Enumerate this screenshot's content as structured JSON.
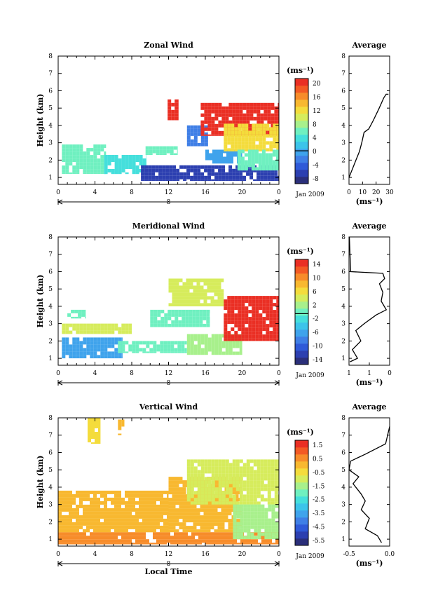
{
  "chart_data": [
    {
      "type": "heatmap",
      "title": "Zonal Wind",
      "ylabel": "Height (km)",
      "x_ticks": [
        "0",
        "4",
        "8",
        "12",
        "16",
        "20",
        "0"
      ],
      "y_ticks": [
        "1",
        "2",
        "3",
        "4",
        "5",
        "6",
        "7",
        "8"
      ],
      "xlim": [
        0,
        24
      ],
      "ylim": [
        0.6,
        8
      ],
      "date_marker": "8",
      "date_label": "Jan 2009",
      "colorbar": {
        "unit": "(ms⁻¹)",
        "labels": [
          "20",
          "16",
          "12",
          "8",
          "4",
          "0",
          "-4",
          "-8"
        ],
        "range": [
          -10,
          22
        ],
        "colors": [
          "#2b2f7a",
          "#2c3fb0",
          "#2f5ad8",
          "#3f7fe6",
          "#3fa3ec",
          "#3cc4ea",
          "#45dfdc",
          "#6ff0c0",
          "#a8f08c",
          "#d6ec5c",
          "#f4dc3c",
          "#f8b830",
          "#f78c2a",
          "#f35a24",
          "#ea2f24"
        ],
        "zero_line": 0
      },
      "profile": {
        "title": "Average",
        "x_ticks": [
          "0",
          "10",
          "20",
          "30"
        ],
        "xlim": [
          0,
          35
        ],
        "xlabel": "(ms⁻¹)",
        "points": [
          [
            0,
            1.0
          ],
          [
            3,
            1.5
          ],
          [
            6,
            2.0
          ],
          [
            9,
            2.5
          ],
          [
            11,
            3.0
          ],
          [
            13,
            3.6
          ],
          [
            17,
            3.8
          ],
          [
            21,
            4.3
          ],
          [
            26,
            5.0
          ],
          [
            30,
            5.6
          ],
          [
            32,
            5.8
          ],
          [
            34,
            5.8
          ]
        ]
      },
      "patches": [
        {
          "x": [
            0.4,
            5.2
          ],
          "y": [
            1.2,
            2.9
          ],
          "v": 5
        },
        {
          "x": [
            5.0,
            9.6
          ],
          "y": [
            1.2,
            2.3
          ],
          "v": 4
        },
        {
          "x": [
            9.0,
            24.0
          ],
          "y": [
            0.8,
            1.7
          ],
          "v": -6
        },
        {
          "x": [
            9.5,
            13.0
          ],
          "y": [
            2.3,
            2.8
          ],
          "v": 6
        },
        {
          "x": [
            11.9,
            13.1
          ],
          "y": [
            4.3,
            5.5
          ],
          "v": 20
        },
        {
          "x": [
            14.0,
            16.3
          ],
          "y": [
            2.8,
            4.0
          ],
          "v": -3
        },
        {
          "x": [
            16.0,
            20.0
          ],
          "y": [
            1.8,
            2.6
          ],
          "v": 0
        },
        {
          "x": [
            15.5,
            24.0
          ],
          "y": [
            3.4,
            5.3
          ],
          "v": 20
        },
        {
          "x": [
            18.0,
            24.0
          ],
          "y": [
            2.5,
            4.1
          ],
          "v": 13
        },
        {
          "x": [
            19.5,
            24.0
          ],
          "y": [
            1.4,
            2.6
          ],
          "v": 7
        }
      ]
    },
    {
      "type": "heatmap",
      "title": "Meridional Wind",
      "ylabel": "Height (km)",
      "x_ticks": [
        "0",
        "4",
        "8",
        "12",
        "16",
        "20",
        "0"
      ],
      "y_ticks": [
        "1",
        "2",
        "3",
        "4",
        "5",
        "6",
        "7",
        "8"
      ],
      "xlim": [
        0,
        24
      ],
      "ylim": [
        0.6,
        8
      ],
      "date_marker": "8",
      "date_label": "Jan 2009",
      "colorbar": {
        "unit": "(ms⁻¹)",
        "labels": [
          "14",
          "10",
          "6",
          "2",
          "-2",
          "-6",
          "-10",
          "-14"
        ],
        "range": [
          -15,
          16
        ],
        "colors": [
          "#2b2f7a",
          "#2c3fb0",
          "#2f5ad8",
          "#3f7fe6",
          "#3fa3ec",
          "#3cc4ea",
          "#45dfdc",
          "#6ff0c0",
          "#a8f08c",
          "#d6ec5c",
          "#f4dc3c",
          "#f8b830",
          "#f78c2a",
          "#f35a24",
          "#ea2f24"
        ],
        "zero_line": 0
      },
      "profile": {
        "title": "Average",
        "x_ticks": [
          "1",
          "1",
          "0"
        ],
        "xlim": [
          0,
          12
        ],
        "xlabel": "(ms⁻¹)",
        "points": [
          [
            0.3,
            0.8
          ],
          [
            2.5,
            1.0
          ],
          [
            1.0,
            1.5
          ],
          [
            3.5,
            2.0
          ],
          [
            2.0,
            2.6
          ],
          [
            4.5,
            3.0
          ],
          [
            8.0,
            3.5
          ],
          [
            11.0,
            3.8
          ],
          [
            9.5,
            4.3
          ],
          [
            10.0,
            4.8
          ],
          [
            9.0,
            5.3
          ],
          [
            10.5,
            5.6
          ],
          [
            10.0,
            5.9
          ],
          [
            0.5,
            6.0
          ],
          [
            0.3,
            7.0
          ],
          [
            0.1,
            8.0
          ]
        ]
      },
      "patches": [
        {
          "x": [
            0.4,
            7.0
          ],
          "y": [
            1.0,
            2.2
          ],
          "v": -6
        },
        {
          "x": [
            0.4,
            8.0
          ],
          "y": [
            2.4,
            3.0
          ],
          "v": 4
        },
        {
          "x": [
            1.0,
            3.0
          ],
          "y": [
            3.3,
            3.8
          ],
          "v": 0
        },
        {
          "x": [
            6.5,
            14.0
          ],
          "y": [
            1.3,
            2.0
          ],
          "v": 1
        },
        {
          "x": [
            10.0,
            16.5
          ],
          "y": [
            2.8,
            3.8
          ],
          "v": 1
        },
        {
          "x": [
            12.0,
            18.0
          ],
          "y": [
            4.0,
            5.6
          ],
          "v": 5
        },
        {
          "x": [
            14.0,
            20.0
          ],
          "y": [
            1.2,
            2.4
          ],
          "v": 3
        },
        {
          "x": [
            18.0,
            24.0
          ],
          "y": [
            2.0,
            4.6
          ],
          "v": 14
        }
      ]
    },
    {
      "type": "heatmap",
      "title": "Vertical Wind",
      "xlabel": "Local Time",
      "ylabel": "Height (km)",
      "x_ticks": [
        "0",
        "4",
        "8",
        "12",
        "16",
        "20",
        "0"
      ],
      "y_ticks": [
        "1",
        "2",
        "3",
        "4",
        "5",
        "6",
        "7",
        "8"
      ],
      "xlim": [
        0,
        24
      ],
      "ylim": [
        0.6,
        8
      ],
      "date_marker": "8",
      "date_label": "Jan 2009",
      "colorbar": {
        "unit": "(ms⁻¹)",
        "labels": [
          "1.5",
          "0.5",
          "-0.5",
          "-1.5",
          "-2.5",
          "-3.5",
          "-4.5",
          "-5.5"
        ],
        "range": [
          -6,
          2
        ],
        "colors": [
          "#2b2f7a",
          "#2c3fb0",
          "#2f5ad8",
          "#3f7fe6",
          "#3fa3ec",
          "#3cc4ea",
          "#45dfdc",
          "#6ff0c0",
          "#a8f08c",
          "#d6ec5c",
          "#f4dc3c",
          "#f8b830",
          "#f78c2a",
          "#f35a24",
          "#ea2f24"
        ]
      },
      "profile": {
        "title": "Average",
        "x_ticks": [
          "-0.5",
          "0.0"
        ],
        "xlim": [
          -0.5,
          0.0
        ],
        "xlabel": "(ms⁻¹)",
        "points": [
          [
            -0.1,
            0.8
          ],
          [
            -0.15,
            1.2
          ],
          [
            -0.3,
            1.6
          ],
          [
            -0.25,
            2.2
          ],
          [
            -0.35,
            2.7
          ],
          [
            -0.3,
            3.2
          ],
          [
            -0.35,
            3.6
          ],
          [
            -0.45,
            4.2
          ],
          [
            -0.38,
            4.6
          ],
          [
            -0.5,
            5.0
          ],
          [
            -0.48,
            5.5
          ],
          [
            -0.3,
            5.9
          ],
          [
            -0.05,
            6.5
          ],
          [
            0.0,
            7.5
          ]
        ]
      },
      "patches": [
        {
          "x": [
            0.0,
            24.0
          ],
          "y": [
            0.7,
            1.4
          ],
          "v": 0.4
        },
        {
          "x": [
            0.0,
            12.0
          ],
          "y": [
            1.4,
            3.8
          ],
          "v": 0.2
        },
        {
          "x": [
            12.0,
            20.0
          ],
          "y": [
            1.4,
            4.6
          ],
          "v": 0.2
        },
        {
          "x": [
            14.0,
            24.0
          ],
          "y": [
            3.0,
            5.6
          ],
          "v": -0.9
        },
        {
          "x": [
            19.0,
            24.0
          ],
          "y": [
            1.0,
            3.0
          ],
          "v": -1.7
        },
        {
          "x": [
            3.2,
            4.6
          ],
          "y": [
            6.5,
            8.0
          ],
          "v": -0.2
        },
        {
          "x": [
            6.5,
            7.2
          ],
          "y": [
            7.0,
            7.9
          ],
          "v": 0.1
        }
      ]
    }
  ]
}
